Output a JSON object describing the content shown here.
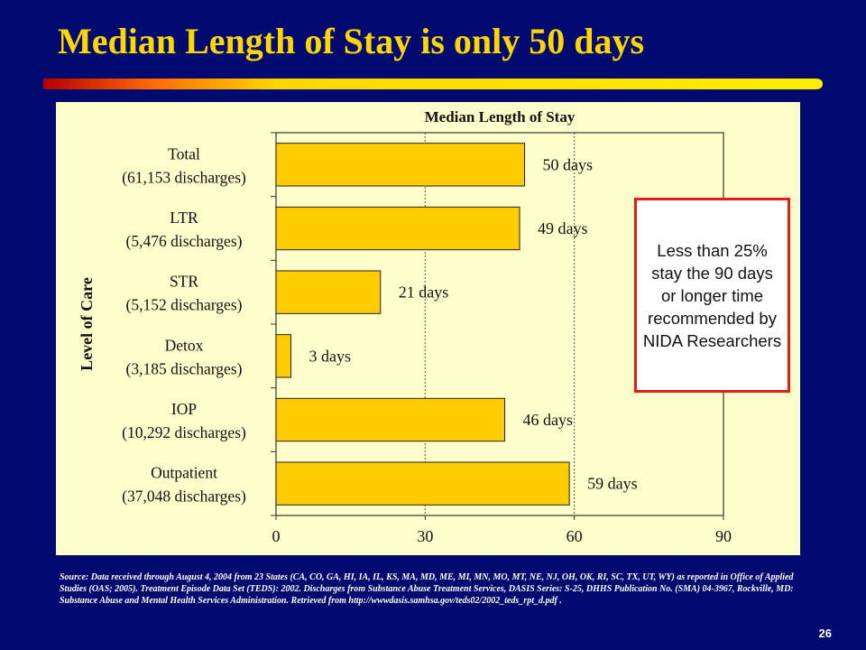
{
  "slide": {
    "title": "Median Length of Stay is only 50 days",
    "page_number": "26",
    "callout": "Less than 25% stay the 90 days or longer time recommended by NIDA Researchers",
    "source_note": "Source: Data received through August 4, 2004 from 23 States (CA, CO, GA, HI, IA, IL, KS, MA, MD, ME, MI, MN, MO, MT, NE, NJ, OH, OK, RI, SC, TX, UT, WY) as reported in Office of Applied Studies (OAS; 2005). Treatment Episode Data Set (TEDS): 2002. Discharges from Substance Abuse Treatment Services, DASIS Series: S-25, DHHS Publication No. (SMA) 04-3967, Rockville, MD: Substance Abuse and Mental Health Services Administration. Retrieved from http://wwwdasis.samhsa.gov/teds02/2002_teds_rpt_d.pdf ."
  },
  "colors": {
    "background": "#000a6e",
    "title": "#ffd700",
    "plot_background": "#ffffcc",
    "bar_fill": "#ffcc00",
    "callout_border": "#e41b17"
  },
  "chart_data": {
    "type": "bar",
    "orientation": "horizontal",
    "title": "Median Length of Stay",
    "xlabel": "",
    "ylabel": "Level of Care",
    "xlim": [
      0,
      90
    ],
    "x_ticks": [
      0,
      30,
      60,
      90
    ],
    "gridlines_x": [
      30,
      60
    ],
    "legend": "none",
    "categories": [
      {
        "name": "Total",
        "detail": "(61,153 discharges)"
      },
      {
        "name": "LTR",
        "detail": "(5,476 discharges)"
      },
      {
        "name": "STR",
        "detail": "(5,152 discharges)"
      },
      {
        "name": "Detox",
        "detail": "(3,185 discharges)"
      },
      {
        "name": "IOP",
        "detail": "(10,292 discharges)"
      },
      {
        "name": "Outpatient",
        "detail": "(37,048 discharges)"
      }
    ],
    "values": [
      50,
      49,
      21,
      3,
      46,
      59
    ],
    "data_labels": [
      "50 days",
      "49 days",
      "21 days",
      "3 days",
      "46 days",
      "59 days"
    ]
  }
}
